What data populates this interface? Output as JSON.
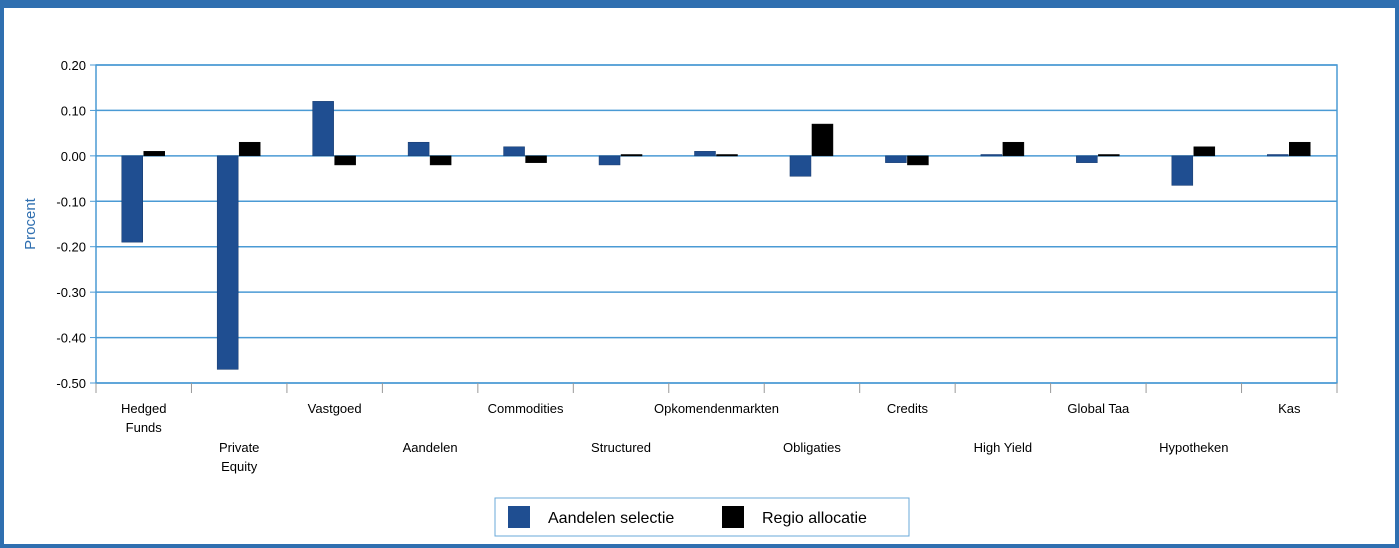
{
  "chart_data": {
    "type": "bar",
    "ylabel": "Procent",
    "xlabel": "",
    "ylim": [
      -0.5,
      0.2
    ],
    "yticks": [
      "0.20",
      "0.10",
      "0.00",
      "-0.10",
      "-0.20",
      "-0.30",
      "-0.40",
      "-0.50"
    ],
    "grid": true,
    "legend_position": "bottom",
    "categories": [
      "Hedged Funds",
      "Private Equity",
      "Vastgoed",
      "Aandelen",
      "Commodities",
      "Structured",
      "Opkomendenmarkten",
      "Obligaties",
      "Credits",
      "High Yield",
      "Global Taa",
      "Hypotheken",
      "Kas"
    ],
    "series": [
      {
        "name": "Aandelen selectie",
        "color": "#1f4e91",
        "values": [
          -0.19,
          -0.47,
          0.12,
          0.03,
          0.02,
          -0.02,
          0.01,
          -0.045,
          -0.015,
          0.003,
          -0.015,
          -0.065,
          0.003
        ]
      },
      {
        "name": "Regio allocatie",
        "color": "#000000",
        "values": [
          0.01,
          0.03,
          -0.02,
          -0.02,
          -0.015,
          0.003,
          0.003,
          0.07,
          -0.02,
          0.03,
          0.003,
          0.02,
          0.03
        ]
      }
    ]
  }
}
